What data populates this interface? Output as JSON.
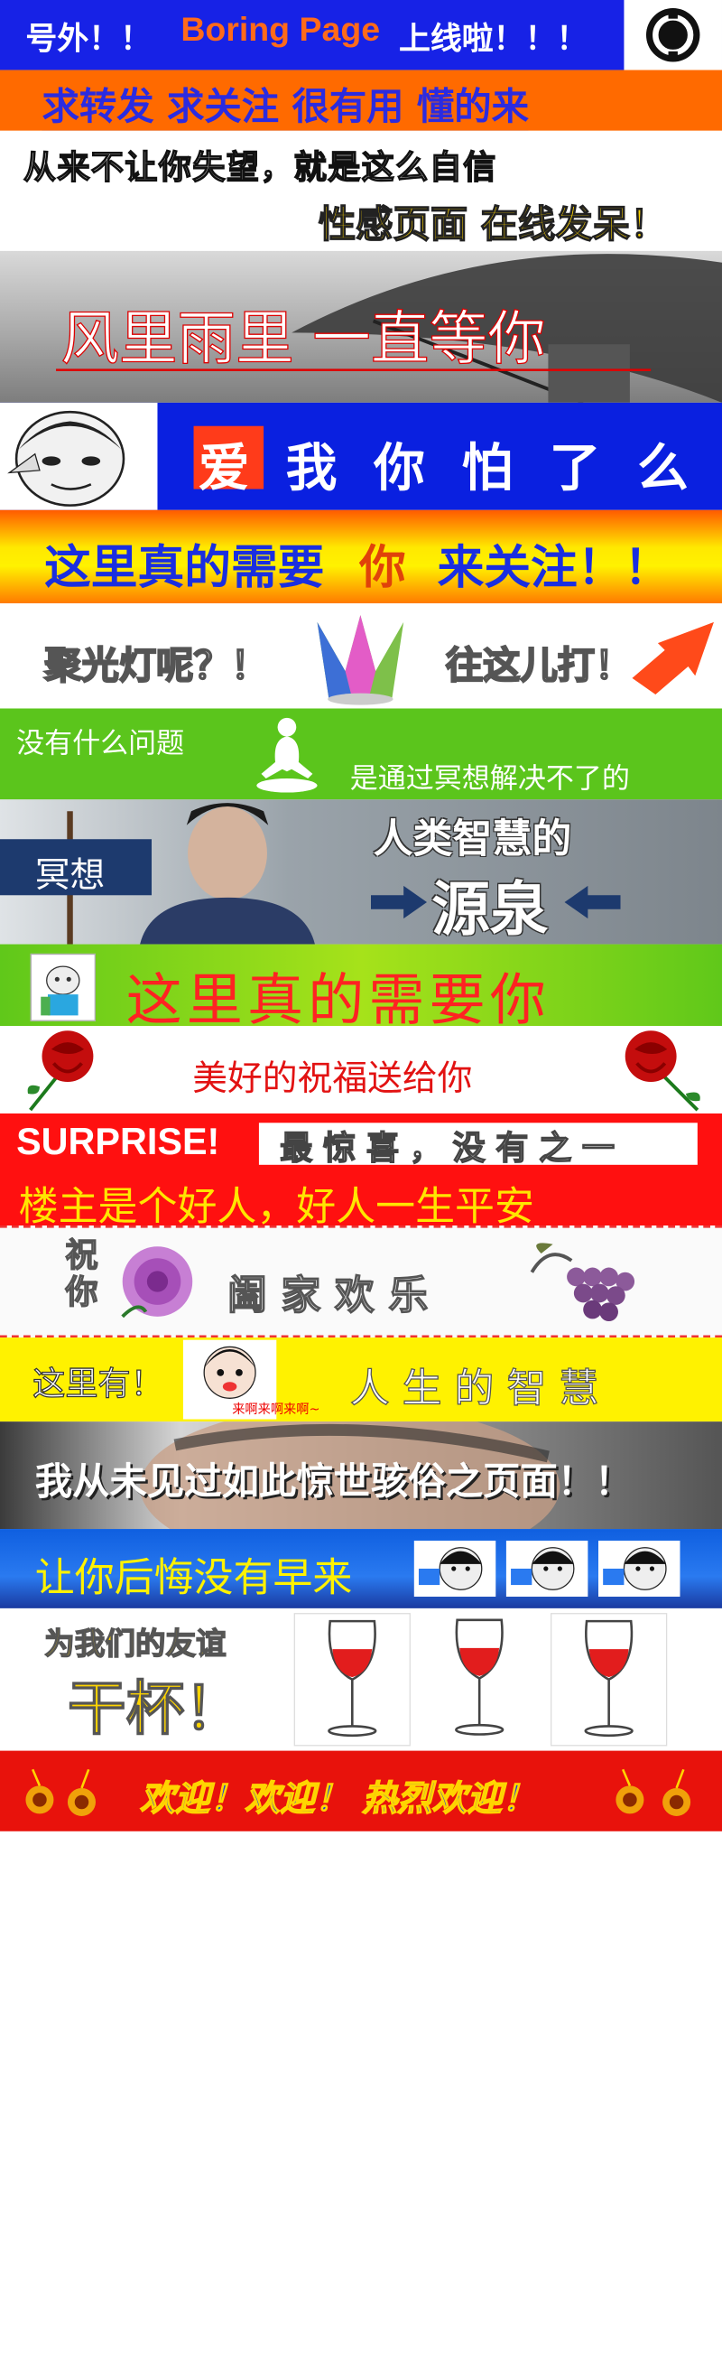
{
  "b1": {
    "text_a": "号外！！",
    "text_b": "Boring Page",
    "text_c": "上线啦！！！"
  },
  "b2": {
    "text": "求转发  求关注  很有用  懂的来"
  },
  "b3": {
    "line1": "从来不让你失望，就是这么自信",
    "line2": "性感页面  在线发呆！"
  },
  "b4": {
    "text": "风里雨里  一直等你"
  },
  "b5": {
    "love": "爱",
    "rest": "我 你 怕 了 么"
  },
  "b6": {
    "text_a": "这里真的需要",
    "text_b": "你",
    "text_c": "来关注！！"
  },
  "b7": {
    "left": "聚光灯呢？！",
    "right": "往这儿打！"
  },
  "b8": {
    "left": "没有什么问题",
    "right": "是通过冥想解决不了的"
  },
  "b9": {
    "tag": "冥想",
    "line1": "人类智慧的",
    "line2": "源泉"
  },
  "b10": {
    "text": "这里真的需要你"
  },
  "b11": {
    "text": "美好的祝福送给你"
  },
  "b12": {
    "surprise": "SURPRISE!",
    "box": "最惊喜，没有之一",
    "line2": "楼主是个好人，好人一生平安"
  },
  "b13": {
    "col": "祝你",
    "text": "阖家欢乐"
  },
  "b14": {
    "left": "这里有！",
    "face_caption": "来啊来啊来啊~",
    "right": "人 生 的 智 慧"
  },
  "b15": {
    "text": "我从未见过如此惊世骇俗之页面！！"
  },
  "b16": {
    "text": "让你后悔没有早来"
  },
  "b17": {
    "line1": "为我们的友谊",
    "line2": "干杯！"
  },
  "b18": {
    "text": "欢迎！欢迎！ 热烈欢迎！"
  }
}
